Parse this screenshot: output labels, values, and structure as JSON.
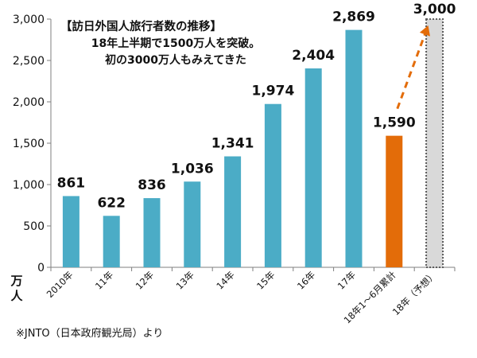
{
  "chart_data": {
    "type": "bar",
    "title_lines": [
      "【訪日外国人旅行者数の推移】",
      "18年上半期で1500万人を突破。",
      "初の3000万人もみえてきた"
    ],
    "ylabel_chars": [
      "万",
      "人"
    ],
    "ylim": [
      0,
      3000
    ],
    "yticks": [
      0,
      500,
      1000,
      1500,
      2000,
      2500,
      3000
    ],
    "ytick_labels": [
      "0",
      "500",
      "1,000",
      "1,500",
      "2,000",
      "2,500",
      "3,000"
    ],
    "grid": false,
    "categories": [
      "2010年",
      "11年",
      "12年",
      "13年",
      "14年",
      "15年",
      "16年",
      "17年",
      "18年1～6月累計",
      "18年（予想）"
    ],
    "values": [
      861,
      622,
      836,
      1036,
      1341,
      1974,
      2404,
      2869,
      1590,
      3000
    ],
    "value_labels": [
      "861",
      "622",
      "836",
      "1,036",
      "1,341",
      "1,974",
      "2,404",
      "2,869",
      "1,590",
      "3,000"
    ],
    "bar_styles": [
      "actual",
      "actual",
      "actual",
      "actual",
      "actual",
      "actual",
      "actual",
      "actual",
      "partial",
      "forecast"
    ],
    "annotation": "dashed arrow from 1,590 to 3,000"
  },
  "colors": {
    "actual": "#4bacc6",
    "partial": "#e36c09",
    "forecast_fill": "#d9d9d9",
    "forecast_border": "#595959",
    "arrow": "#e36c09",
    "axis": "#7f7f7f",
    "text": "#111111"
  },
  "source": "※JNTO（日本政府観光局）より"
}
